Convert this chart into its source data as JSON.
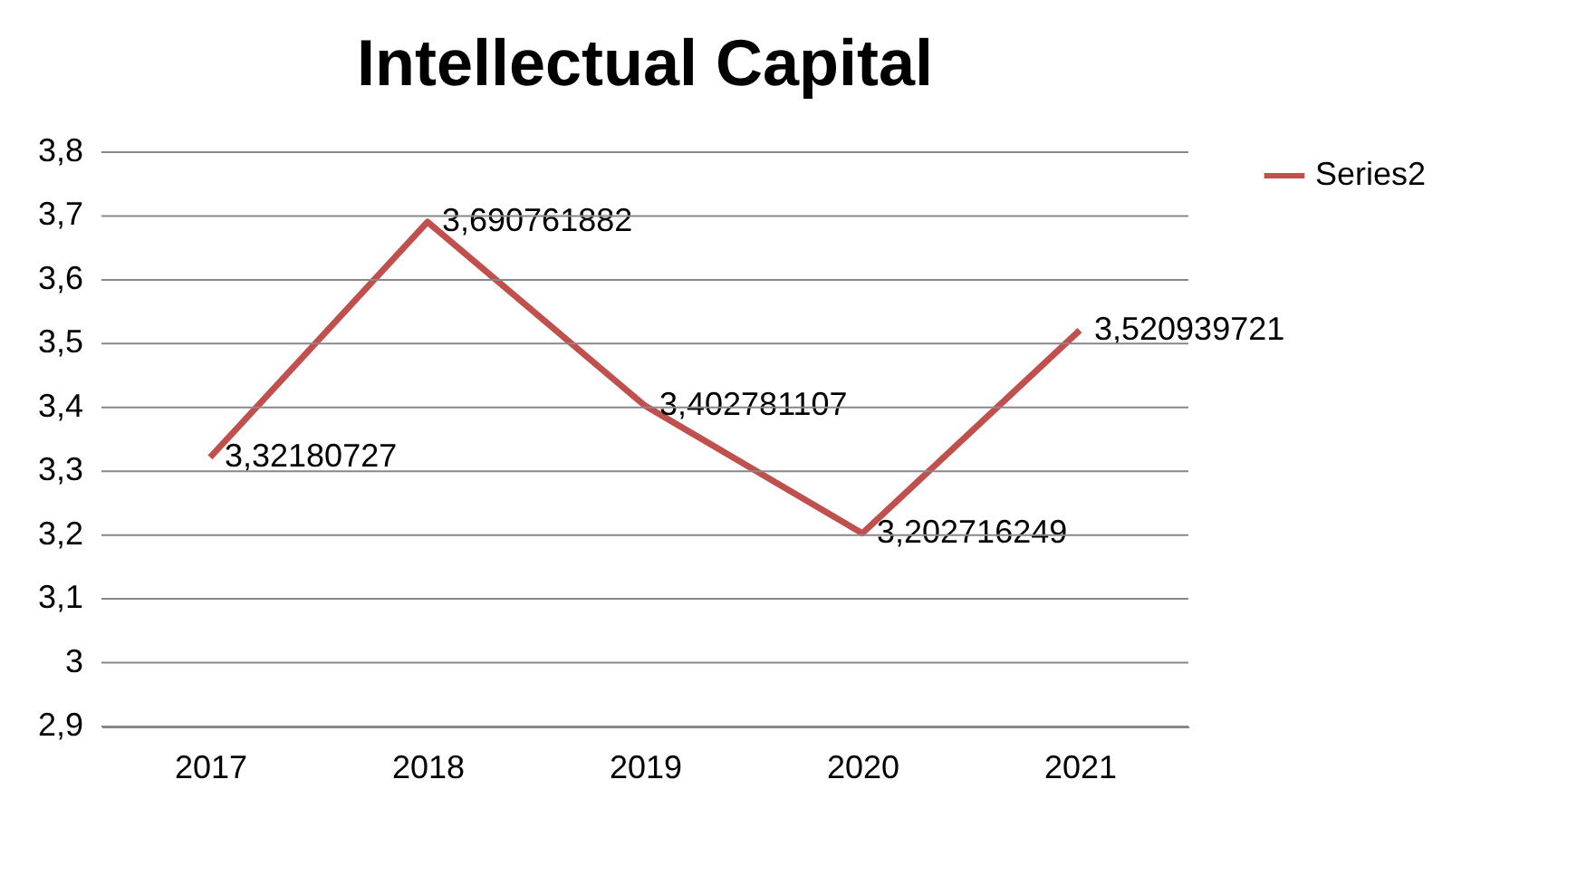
{
  "chart_data": {
    "type": "line",
    "title": "Intellectual Capital",
    "categories": [
      "2017",
      "2018",
      "2019",
      "2020",
      "2021"
    ],
    "series": [
      {
        "name": "Series2",
        "color": "#c0504d",
        "values": [
          3.32180727,
          3.690761882,
          3.402781107,
          3.202716249,
          3.520939721
        ],
        "value_labels": [
          "3,32180727",
          "3,690761882",
          "3,402781107",
          "3,202716249",
          "3,520939721"
        ]
      }
    ],
    "ylim": [
      2.9,
      3.8
    ],
    "yticks": [
      {
        "value": 2.9,
        "label": "2,9"
      },
      3,
      {
        "value": 3.1,
        "label": "3,1"
      },
      {
        "value": 3.2,
        "label": "3,2"
      },
      {
        "value": 3.3,
        "label": "3,3"
      },
      {
        "value": 3.4,
        "label": "3,4"
      },
      {
        "value": 3.5,
        "label": "3,5"
      },
      {
        "value": 3.6,
        "label": "3,6"
      },
      {
        "value": 3.7,
        "label": "3,7"
      },
      {
        "value": 3.8,
        "label": "3,8"
      }
    ],
    "grid": "y",
    "legend": "right",
    "marker": "none",
    "line_style": "solid"
  }
}
